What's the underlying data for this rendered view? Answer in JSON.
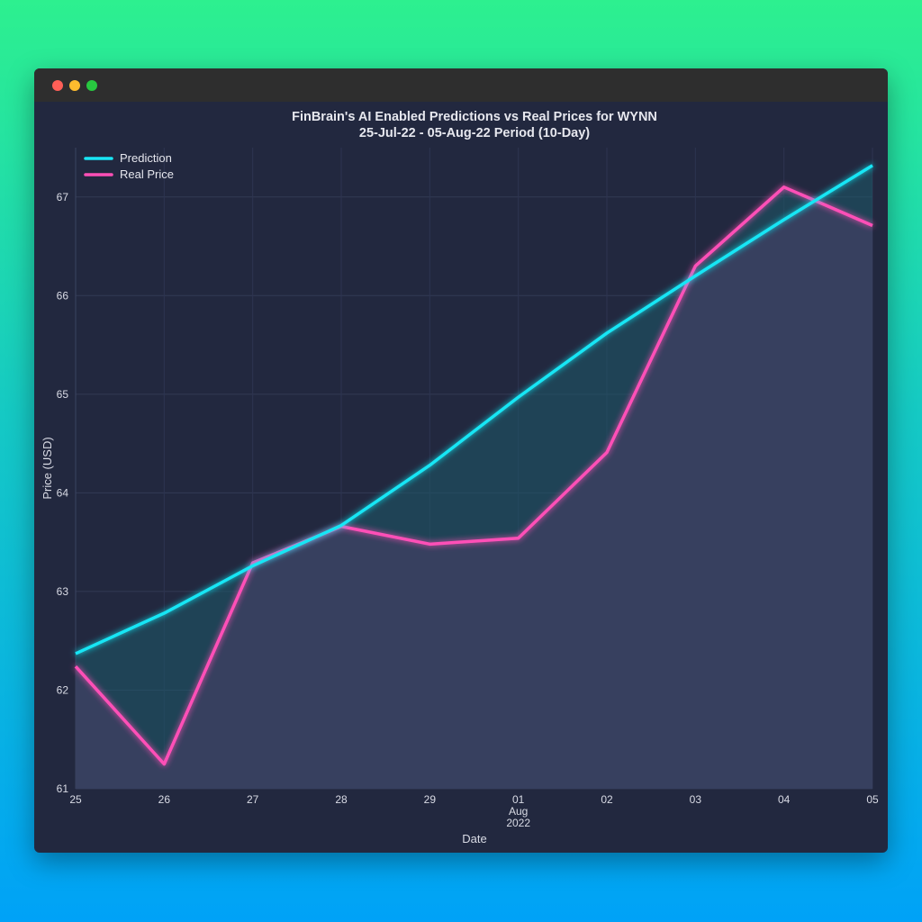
{
  "window": {
    "controls": [
      "close",
      "minimize",
      "maximize"
    ]
  },
  "chart_data": {
    "type": "line",
    "title": "FinBrain's AI Enabled Predictions vs Real Prices for WYNN",
    "subtitle": "25-Jul-22 - 05-Aug-22 Period (10-Day)",
    "xlabel": "Date",
    "ylabel": "Price (USD)",
    "categories": [
      "25",
      "26",
      "27",
      "28",
      "29",
      "01",
      "02",
      "03",
      "04",
      "05"
    ],
    "month_label": "Aug",
    "year_label": "2022",
    "ylim": [
      61,
      67.5
    ],
    "yticks": [
      61,
      62,
      63,
      64,
      65,
      66,
      67
    ],
    "grid": true,
    "legend_position": "top-left",
    "series": [
      {
        "name": "Prediction",
        "color": "#19e6f5",
        "values": [
          62.37,
          62.78,
          63.26,
          63.67,
          64.28,
          64.97,
          65.62,
          66.2,
          66.77,
          67.32
        ]
      },
      {
        "name": "Real Price",
        "color": "#ff4fb7",
        "values": [
          62.24,
          61.25,
          63.29,
          63.66,
          63.48,
          63.54,
          64.41,
          66.3,
          67.1,
          66.71
        ]
      }
    ]
  }
}
